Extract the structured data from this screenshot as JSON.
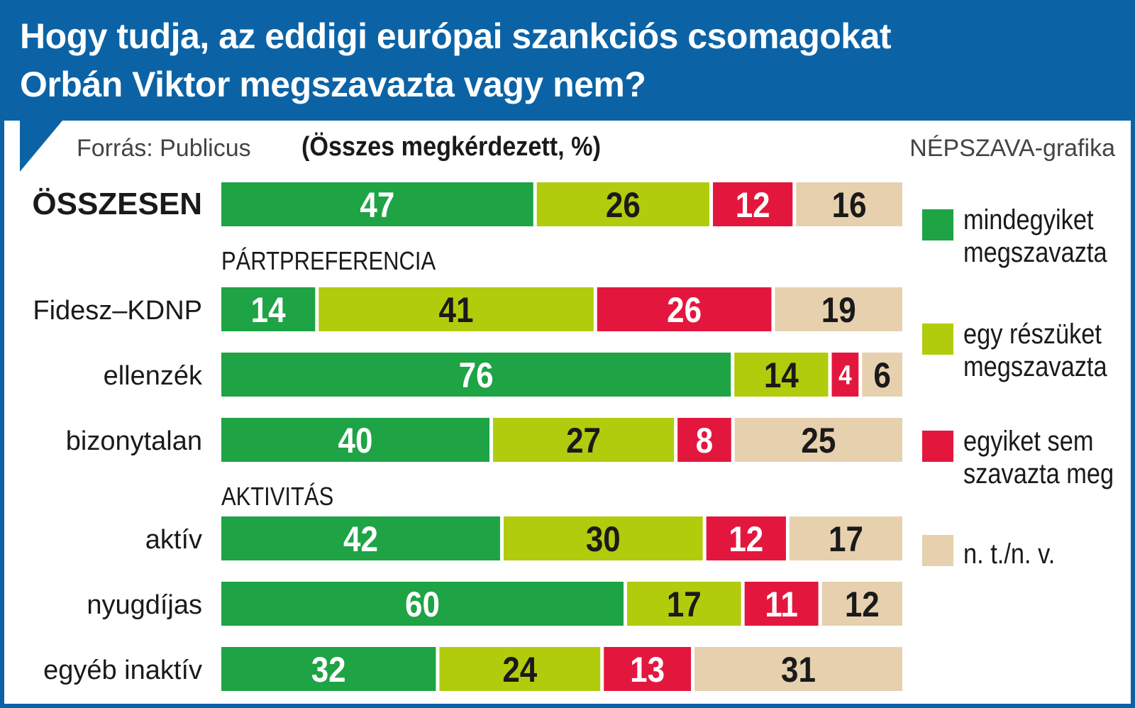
{
  "header": {
    "title_line_1": "Hogy tudja, az eddigi európai szankciós csomagokat",
    "title_line_2": "Orbán Viktor megszavazta vagy nem?"
  },
  "source": "Forrás: Publicus",
  "subtitle": "(Összes megkérdezett, %)",
  "credit": "NÉPSZAVA-grafika",
  "colors": {
    "header": "#0b63a6",
    "all": "#1ea345",
    "some": "#b1cc0c",
    "none": "#e3173e",
    "na": "#e6d0ae"
  },
  "chart_data": {
    "type": "bar",
    "orientation": "horizontal",
    "stacked": true,
    "unit": "%",
    "title": "Hogy tudja, az eddigi európai szankciós csomagokat Orbán Viktor megszavazta vagy nem?",
    "groups": [
      {
        "label": "",
        "rows": [
          "ÖSSZESEN"
        ]
      },
      {
        "label": "PÁRTPREFERENCIA",
        "rows": [
          "Fidesz–KDNP",
          "ellenzék",
          "bizonytalan"
        ]
      },
      {
        "label": "AKTIVITÁS",
        "rows": [
          "aktív",
          "nyugdíjas",
          "egyéb inaktív"
        ]
      }
    ],
    "categories": [
      "ÖSSZESEN",
      "Fidesz–KDNP",
      "ellenzék",
      "bizonytalan",
      "aktív",
      "nyugdíjas",
      "egyéb inaktív"
    ],
    "series": [
      {
        "key": "all",
        "name": "mindegyiket megszavazta",
        "legend_lines": [
          "mindegyiket",
          "megszavazta"
        ],
        "values": [
          47,
          14,
          76,
          40,
          42,
          60,
          32
        ]
      },
      {
        "key": "some",
        "name": "egy részüket megszavazta",
        "legend_lines": [
          "egy részüket",
          "megszavazta"
        ],
        "values": [
          26,
          41,
          14,
          27,
          30,
          17,
          24
        ]
      },
      {
        "key": "none",
        "name": "egyiket sem szavazta meg",
        "legend_lines": [
          "egyiket sem",
          "szavazta meg"
        ],
        "values": [
          12,
          26,
          4,
          8,
          12,
          11,
          13
        ]
      },
      {
        "key": "na",
        "name": "n. t./n. v.",
        "legend_lines": [
          "n. t./n. v."
        ],
        "values": [
          16,
          19,
          6,
          25,
          17,
          12,
          31
        ]
      }
    ],
    "legend_position": "right"
  }
}
